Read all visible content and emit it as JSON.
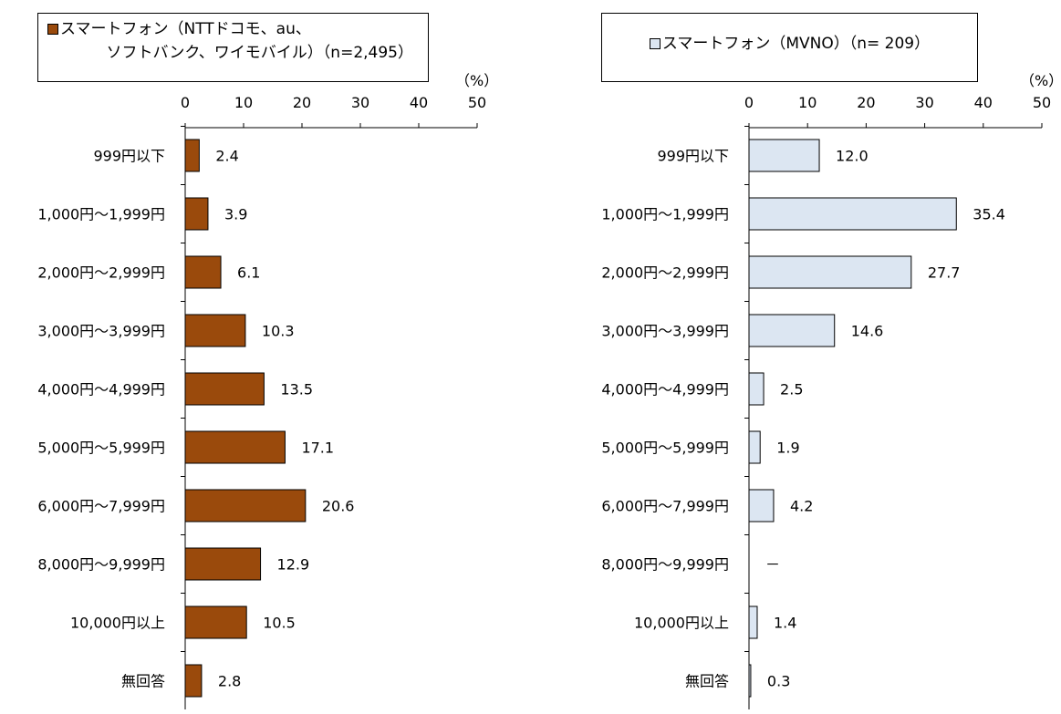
{
  "chart_data": [
    {
      "type": "bar",
      "orientation": "horizontal",
      "legend": {
        "line1": "スマートフォン（NTTドコモ、au、",
        "line2": "ソフトバンク、ワイモバイル）（n=2,495）",
        "swatch_color": "#9a4a0c"
      },
      "unit": "（%）",
      "xlim": [
        0,
        50
      ],
      "ticks": [
        "0",
        "10",
        "20",
        "30",
        "40",
        "50"
      ],
      "categories": [
        "999円以下",
        "1,000円～1,999円",
        "2,000円～2,999円",
        "3,000円～3,999円",
        "4,000円～4,999円",
        "5,000円～5,999円",
        "6,000円～7,999円",
        "8,000円～9,999円",
        "10,000円以上",
        "無回答"
      ],
      "values": [
        2.4,
        3.9,
        6.1,
        10.3,
        13.5,
        17.1,
        20.6,
        12.9,
        10.5,
        2.8
      ],
      "labels": [
        "2.4",
        "3.9",
        "6.1",
        "10.3",
        "13.5",
        "17.1",
        "20.6",
        "12.9",
        "10.5",
        "2.8"
      ],
      "bar_color": "#9a4a0c"
    },
    {
      "type": "bar",
      "orientation": "horizontal",
      "legend": {
        "line1": "スマートフォン（MVNO）（n=  209）",
        "swatch_color": "#dce6f2"
      },
      "unit": "（%）",
      "xlim": [
        0,
        50
      ],
      "ticks": [
        "0",
        "10",
        "20",
        "30",
        "40",
        "50"
      ],
      "categories": [
        "999円以下",
        "1,000円～1,999円",
        "2,000円～2,999円",
        "3,000円～3,999円",
        "4,000円～4,999円",
        "5,000円～5,999円",
        "6,000円～7,999円",
        "8,000円～9,999円",
        "10,000円以上",
        "無回答"
      ],
      "values": [
        12.0,
        35.4,
        27.7,
        14.6,
        2.5,
        1.9,
        4.2,
        0,
        1.4,
        0.3
      ],
      "labels": [
        "12.0",
        "35.4",
        "27.7",
        "14.6",
        "2.5",
        "1.9",
        "4.2",
        "－",
        "1.4",
        "0.3"
      ],
      "bar_color": "#dce6f2"
    }
  ]
}
